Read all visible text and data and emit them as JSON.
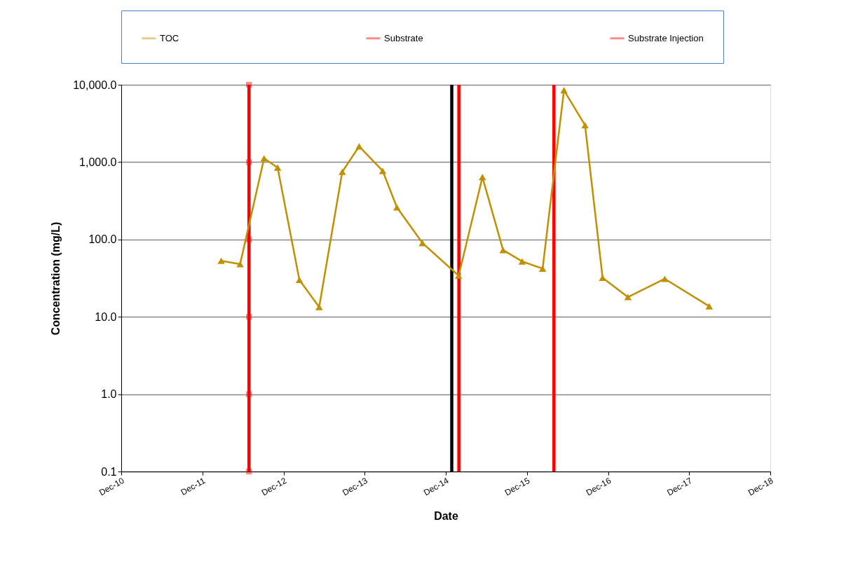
{
  "chart_data": {
    "type": "line",
    "xlabel": "Date",
    "ylabel": "Concentration (mg/L)",
    "log": "y",
    "grid": "y",
    "legend": "top",
    "x": [
      "2012-02-24",
      "2012-05-19",
      "2012-09-04",
      "2012-11-04",
      "2013-02-10",
      "2013-05-10",
      "2013-08-22",
      "2013-11-06",
      "2014-02-20",
      "2014-04-25",
      "2014-08-18",
      "2015-01-28",
      "2015-05-15",
      "2015-08-16",
      "2015-11-10",
      "2016-02-10",
      "2016-05-16",
      "2016-08-19",
      "2016-11-06",
      "2017-02-28",
      "2017-08-13",
      "2018-03-01"
    ],
    "series": [
      {
        "name": "TOC",
        "color": "#bf9000",
        "marker": "triangle",
        "values": [
          53,
          48,
          1120,
          850,
          30,
          13.4,
          750,
          1600,
          770,
          260,
          90,
          34,
          640,
          73,
          52,
          42,
          8500,
          3000,
          32,
          18,
          31,
          13.7
        ]
      },
      {
        "name": "Substrate",
        "color": "#ff0000",
        "marker": "square",
        "x": [
          "2012-06-28",
          "2012-06-28",
          "2012-06-28",
          "2012-06-28",
          "2012-06-28",
          "2012-06-28"
        ],
        "values": [
          0.1,
          1,
          10,
          100,
          1000,
          10000
        ]
      },
      {
        "name": "Substrate Injection",
        "color": "#ff0000",
        "marker": "none",
        "x": [
          "2015-01-29",
          "2015-01-29",
          null,
          "2016-04-01",
          "2016-04-01"
        ],
        "values": [
          0.1,
          10000,
          null,
          0.1,
          10000
        ]
      }
    ],
    "ref_lines": [
      {
        "axis": "x",
        "value": "2014-12-28",
        "color": "#000000"
      }
    ],
    "xlim": [
      "2010-12-01",
      "2018-12-01"
    ],
    "xticks": [
      {
        "value": "2010-12-01",
        "label": "Dec-10"
      },
      {
        "value": "2011-12-01",
        "label": "Dec-11"
      },
      {
        "value": "2012-12-01",
        "label": "Dec-12"
      },
      {
        "value": "2013-12-01",
        "label": "Dec-13"
      },
      {
        "value": "2014-12-01",
        "label": "Dec-14"
      },
      {
        "value": "2015-12-01",
        "label": "Dec-15"
      },
      {
        "value": "2016-12-01",
        "label": "Dec-16"
      },
      {
        "value": "2017-12-01",
        "label": "Dec-17"
      },
      {
        "value": "2018-12-01",
        "label": "Dec-18"
      }
    ],
    "ylim": [
      0.1,
      10000
    ],
    "yticks": [
      {
        "value": 0.1,
        "label": "0.1"
      },
      {
        "value": 1,
        "label": "1.0"
      },
      {
        "value": 10,
        "label": "10.0"
      },
      {
        "value": 100,
        "label": "100.0"
      },
      {
        "value": 1000,
        "label": "1,000.0"
      },
      {
        "value": 10000,
        "label": "10,000.0"
      }
    ]
  }
}
